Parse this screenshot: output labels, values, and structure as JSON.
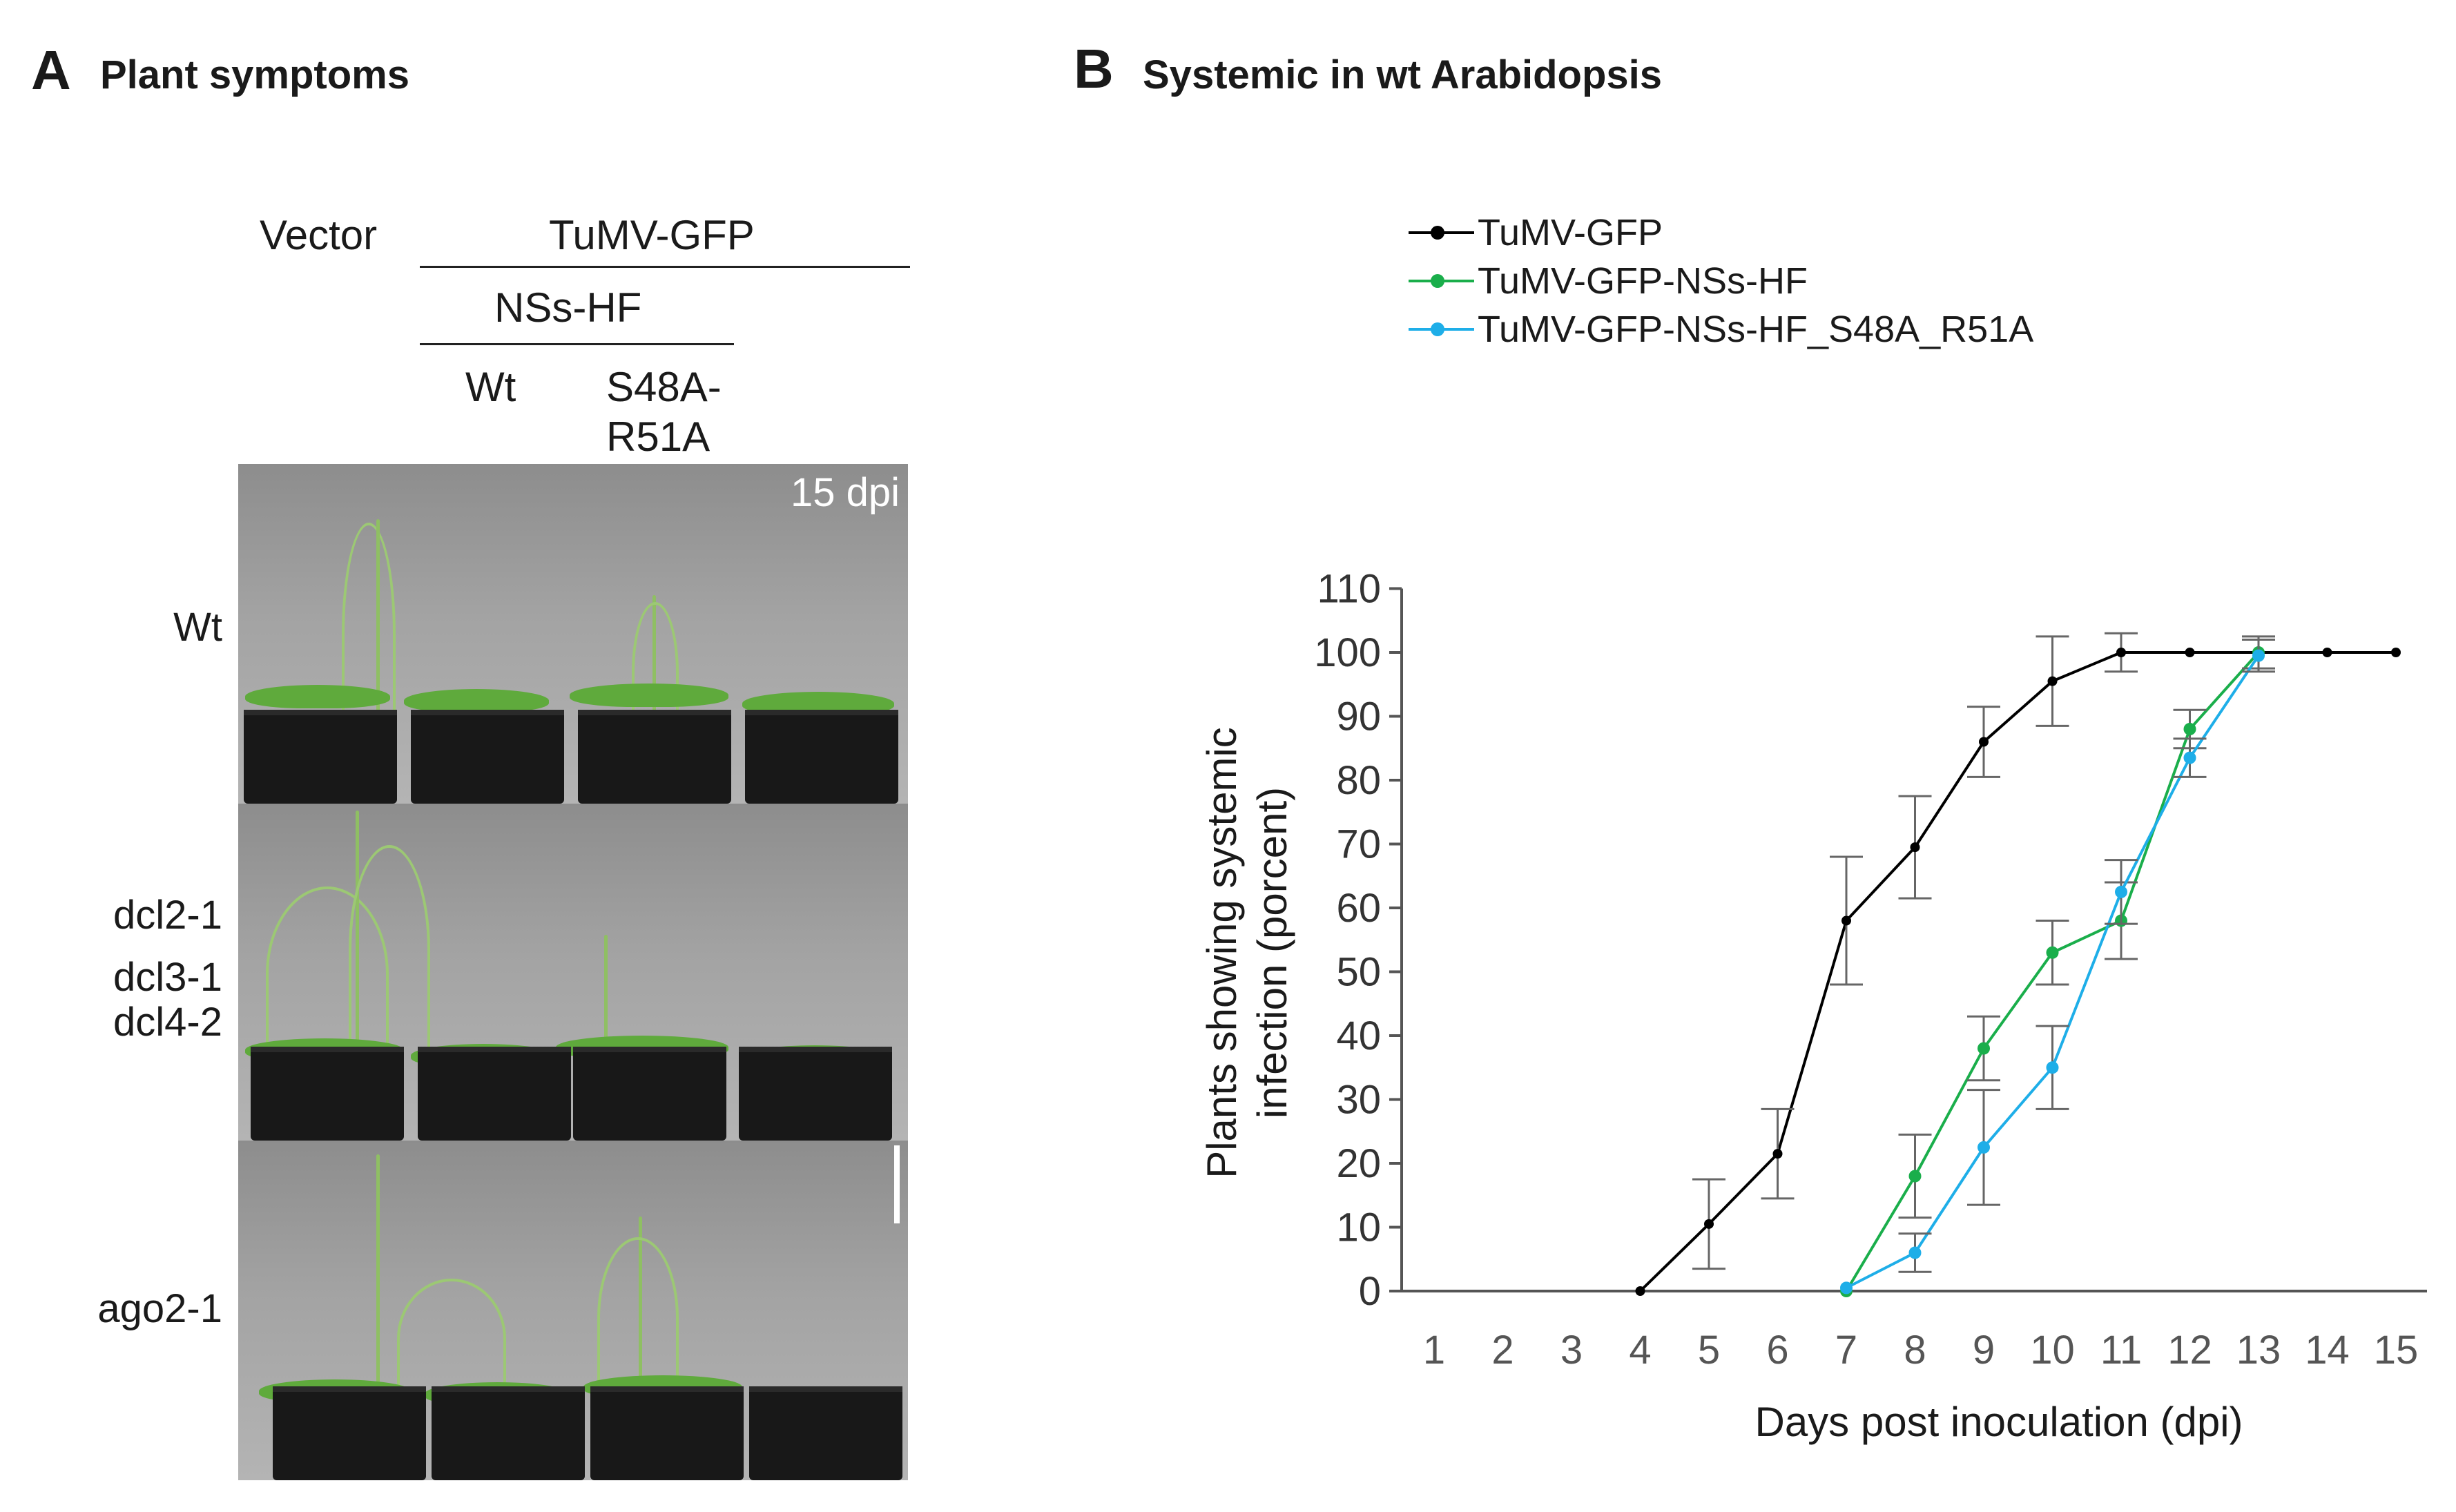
{
  "panel_a": {
    "letter": "A",
    "title": "Plant symptoms",
    "col_headers": {
      "vector": "Vector",
      "tumv": "TuMV-GFP",
      "nss": "NSs-HF",
      "wt": "Wt",
      "mutant_line1": "S48A-",
      "mutant_line2": "R51A"
    },
    "timepoint": "15 dpi",
    "rows": {
      "row1": "Wt",
      "row2_line1": "dcl2-1",
      "row2_line2": "dcl3-1",
      "row2_line3": "dcl4-2",
      "row3": "ago2-1"
    }
  },
  "panel_b": {
    "letter": "B",
    "title": "Systemic in wt Arabidopsis"
  },
  "chart_data": {
    "type": "line",
    "title": "Systemic in wt Arabidopsis",
    "xlabel": "Days post inoculation (dpi)",
    "ylabel_line1": "Plants showing systemic",
    "ylabel_line2": "infection (porcent)",
    "xlim": [
      1,
      15
    ],
    "ylim": [
      0,
      110
    ],
    "x_ticks": [
      1,
      2,
      3,
      4,
      5,
      6,
      7,
      8,
      9,
      10,
      11,
      12,
      13,
      14,
      15
    ],
    "y_ticks": [
      0,
      10,
      20,
      30,
      40,
      50,
      60,
      70,
      80,
      90,
      100,
      110
    ],
    "legend_position": "top-left",
    "series": [
      {
        "name": "TuMV-GFP",
        "color": "#000000",
        "points": [
          {
            "x": 4,
            "y": 0
          },
          {
            "x": 5,
            "y": 10.5,
            "err": 7
          },
          {
            "x": 6,
            "y": 21.5,
            "err": 7
          },
          {
            "x": 7,
            "y": 58,
            "err": 10
          },
          {
            "x": 8,
            "y": 69.5,
            "err": 8
          },
          {
            "x": 9,
            "y": 86,
            "err": 5.5
          },
          {
            "x": 10,
            "y": 95.5,
            "err": 7
          },
          {
            "x": 11,
            "y": 100,
            "err": 3
          },
          {
            "x": 12,
            "y": 100
          },
          {
            "x": 13,
            "y": 100
          },
          {
            "x": 14,
            "y": 100
          },
          {
            "x": 15,
            "y": 100
          }
        ]
      },
      {
        "name": "TuMV-GFP-NSs-HF",
        "color": "#1aae4b",
        "points": [
          {
            "x": 7,
            "y": 0
          },
          {
            "x": 8,
            "y": 18,
            "err": 6.5
          },
          {
            "x": 9,
            "y": 38,
            "err": 5
          },
          {
            "x": 10,
            "y": 53,
            "err": 5
          },
          {
            "x": 11,
            "y": 58,
            "err": 6
          },
          {
            "x": 12,
            "y": 88,
            "err": 3
          },
          {
            "x": 13,
            "y": 100,
            "err": 2.5
          }
        ]
      },
      {
        "name": "TuMV-GFP-NSs-HF_S48A_R51A",
        "color": "#1eaee8",
        "points": [
          {
            "x": 7,
            "y": 0.5
          },
          {
            "x": 8,
            "y": 6,
            "err": 3
          },
          {
            "x": 9,
            "y": 22.5,
            "err": 9
          },
          {
            "x": 10,
            "y": 35,
            "err": 6.5
          },
          {
            "x": 11,
            "y": 62.5,
            "err": 5
          },
          {
            "x": 12,
            "y": 83.5,
            "err": 3
          },
          {
            "x": 13,
            "y": 99.5,
            "err": 2.5
          }
        ]
      }
    ]
  }
}
